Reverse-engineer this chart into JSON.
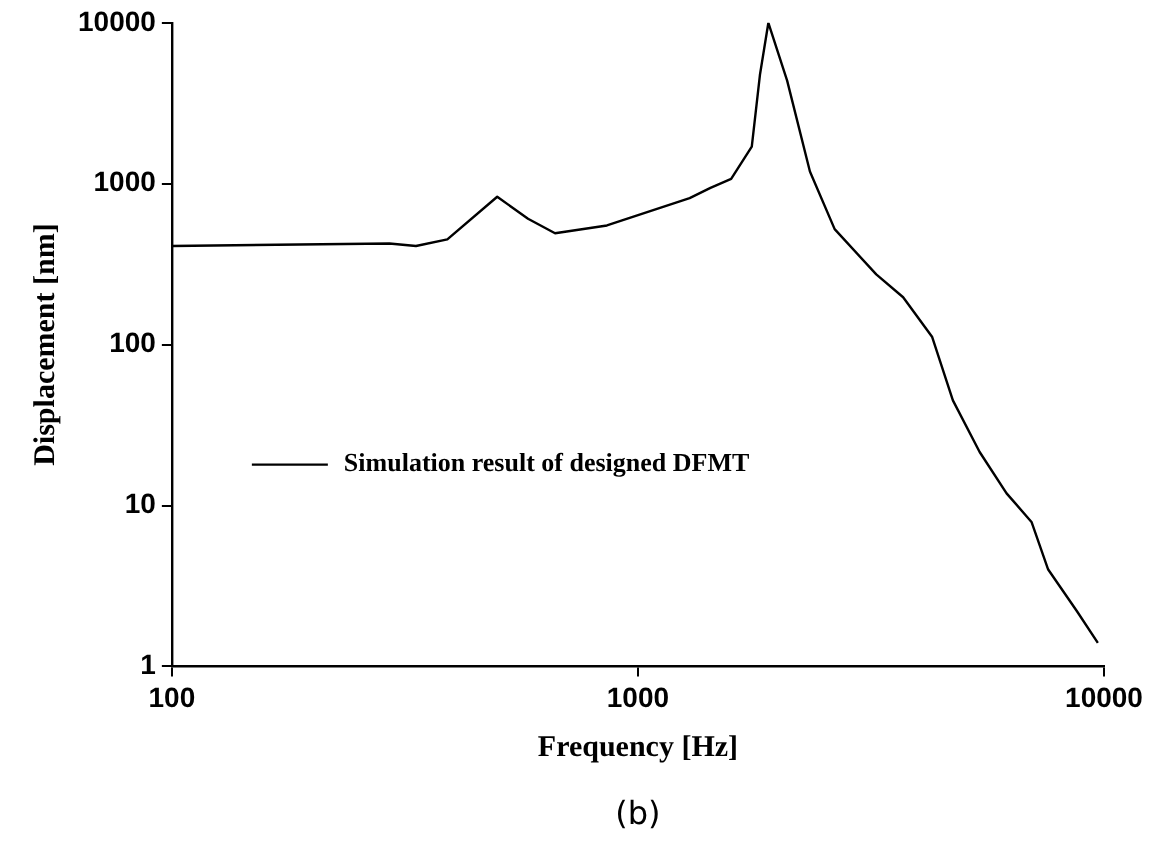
{
  "chart_data": {
    "type": "line",
    "xlabel": "Frequency [Hz]",
    "ylabel": "Displacement [nm]",
    "log": "xy",
    "xlim": [
      100,
      10000
    ],
    "xticks": [
      100,
      1000,
      10000
    ],
    "ylim": [
      1,
      10000
    ],
    "yticks": [
      1,
      10,
      100,
      1000,
      10000
    ],
    "grid": false,
    "legend": "left",
    "marker": "none",
    "line_style": "solid",
    "annotations": [
      "(b)"
    ],
    "series": [
      {
        "name": "Simulation result of designed DFMT",
        "color": "#000000",
        "x": [
          100,
          293,
          334,
          390,
          499,
          581,
          664,
          858,
          1291,
          1431,
          1585,
          1755,
          1828,
          1905,
          2090,
          2339,
          2643,
          3246,
          3707,
          4276,
          4740,
          5410,
          6180,
          6990,
          7590,
          8750,
          9700
        ],
        "values": [
          410,
          425,
          410,
          451,
          830,
          605,
          492,
          550,
          813,
          942,
          1070,
          1700,
          4790,
          10000,
          4370,
          1190,
          522,
          273,
          197,
          112,
          45,
          21.5,
          11.9,
          7.9,
          4,
          2.2,
          1.4
        ]
      }
    ]
  }
}
